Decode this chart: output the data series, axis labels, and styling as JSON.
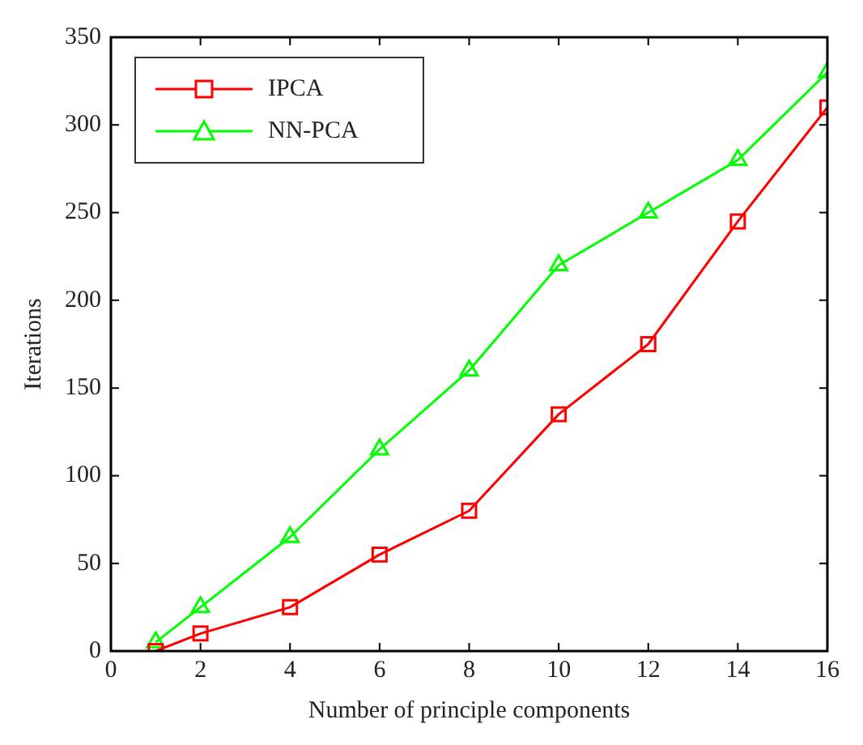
{
  "chart_data": {
    "type": "line",
    "xlabel": "Number of principle components",
    "ylabel": "Iterations",
    "x": [
      1,
      2,
      4,
      6,
      8,
      10,
      12,
      14,
      16
    ],
    "series": [
      {
        "name": "IPCA",
        "color": "#ff0000",
        "marker": "square",
        "values": [
          0,
          10,
          25,
          55,
          80,
          135,
          175,
          245,
          310
        ]
      },
      {
        "name": "NN-PCA",
        "color": "#00ff00",
        "marker": "triangle",
        "values": [
          5,
          25,
          65,
          115,
          160,
          220,
          250,
          280,
          330
        ]
      }
    ],
    "xlim": [
      0,
      16
    ],
    "xticks": [
      0,
      2,
      4,
      6,
      8,
      10,
      12,
      14,
      16
    ],
    "ylim": [
      0,
      350
    ],
    "yticks": [
      0,
      50,
      100,
      150,
      200,
      250,
      300,
      350
    ],
    "grid": false,
    "legend": "top left",
    "line_style": "solid"
  }
}
